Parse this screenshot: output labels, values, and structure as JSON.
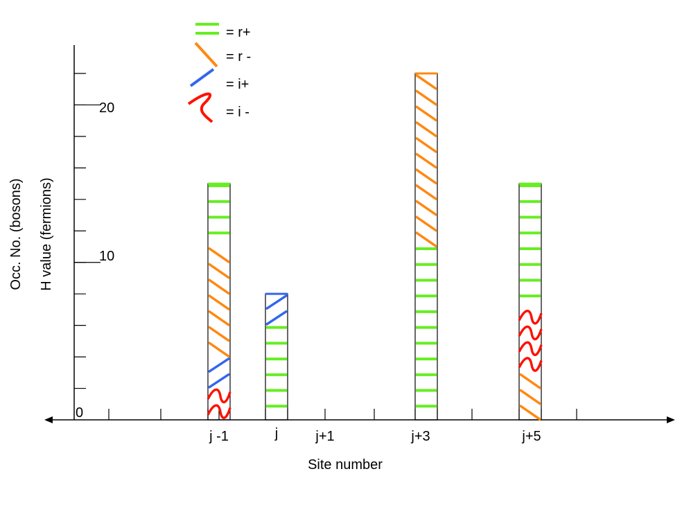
{
  "colors": {
    "r_plus": "#66ee22",
    "r_minus": "#ff8811",
    "i_plus": "#3366ee",
    "i_minus": "#ff1100",
    "axis": "#000000"
  },
  "legend": [
    {
      "key": "r_plus",
      "label": "= r+",
      "icon": "green-dash-icon"
    },
    {
      "key": "r_minus",
      "label": "= r -",
      "icon": "orange-slash-icon"
    },
    {
      "key": "i_plus",
      "label": "= i+",
      "icon": "blue-slash-icon"
    },
    {
      "key": "i_minus",
      "label": "= i -",
      "icon": "red-squiggle-icon"
    }
  ],
  "axes": {
    "ylabel_outer": "Occ. No. (bosons)",
    "ylabel_inner": "H value (fermions)",
    "xlabel": "Site number",
    "yticks": [
      "0",
      "10",
      "20"
    ]
  },
  "sites": [
    {
      "label": "j -1",
      "total": 15,
      "segments": [
        {
          "type": "i_minus",
          "count": 2
        },
        {
          "type": "i_plus",
          "count": 2
        },
        {
          "type": "r_minus",
          "count": 7
        },
        {
          "type": "r_plus",
          "count": 4
        }
      ]
    },
    {
      "label": "j",
      "total": 8,
      "segments": [
        {
          "type": "r_plus",
          "count": 6
        },
        {
          "type": "i_plus",
          "count": 2
        }
      ]
    },
    {
      "label": "j+1",
      "total": 0,
      "segments": []
    },
    {
      "label": "j+3",
      "total": 22,
      "segments": [
        {
          "type": "r_plus",
          "count": 11
        },
        {
          "type": "r_minus",
          "count": 11
        }
      ]
    },
    {
      "label": "j+5",
      "total": 15,
      "segments": [
        {
          "type": "r_minus",
          "count": 3
        },
        {
          "type": "i_minus",
          "count": 4
        },
        {
          "type": "r_plus",
          "count": 8
        }
      ]
    }
  ]
}
